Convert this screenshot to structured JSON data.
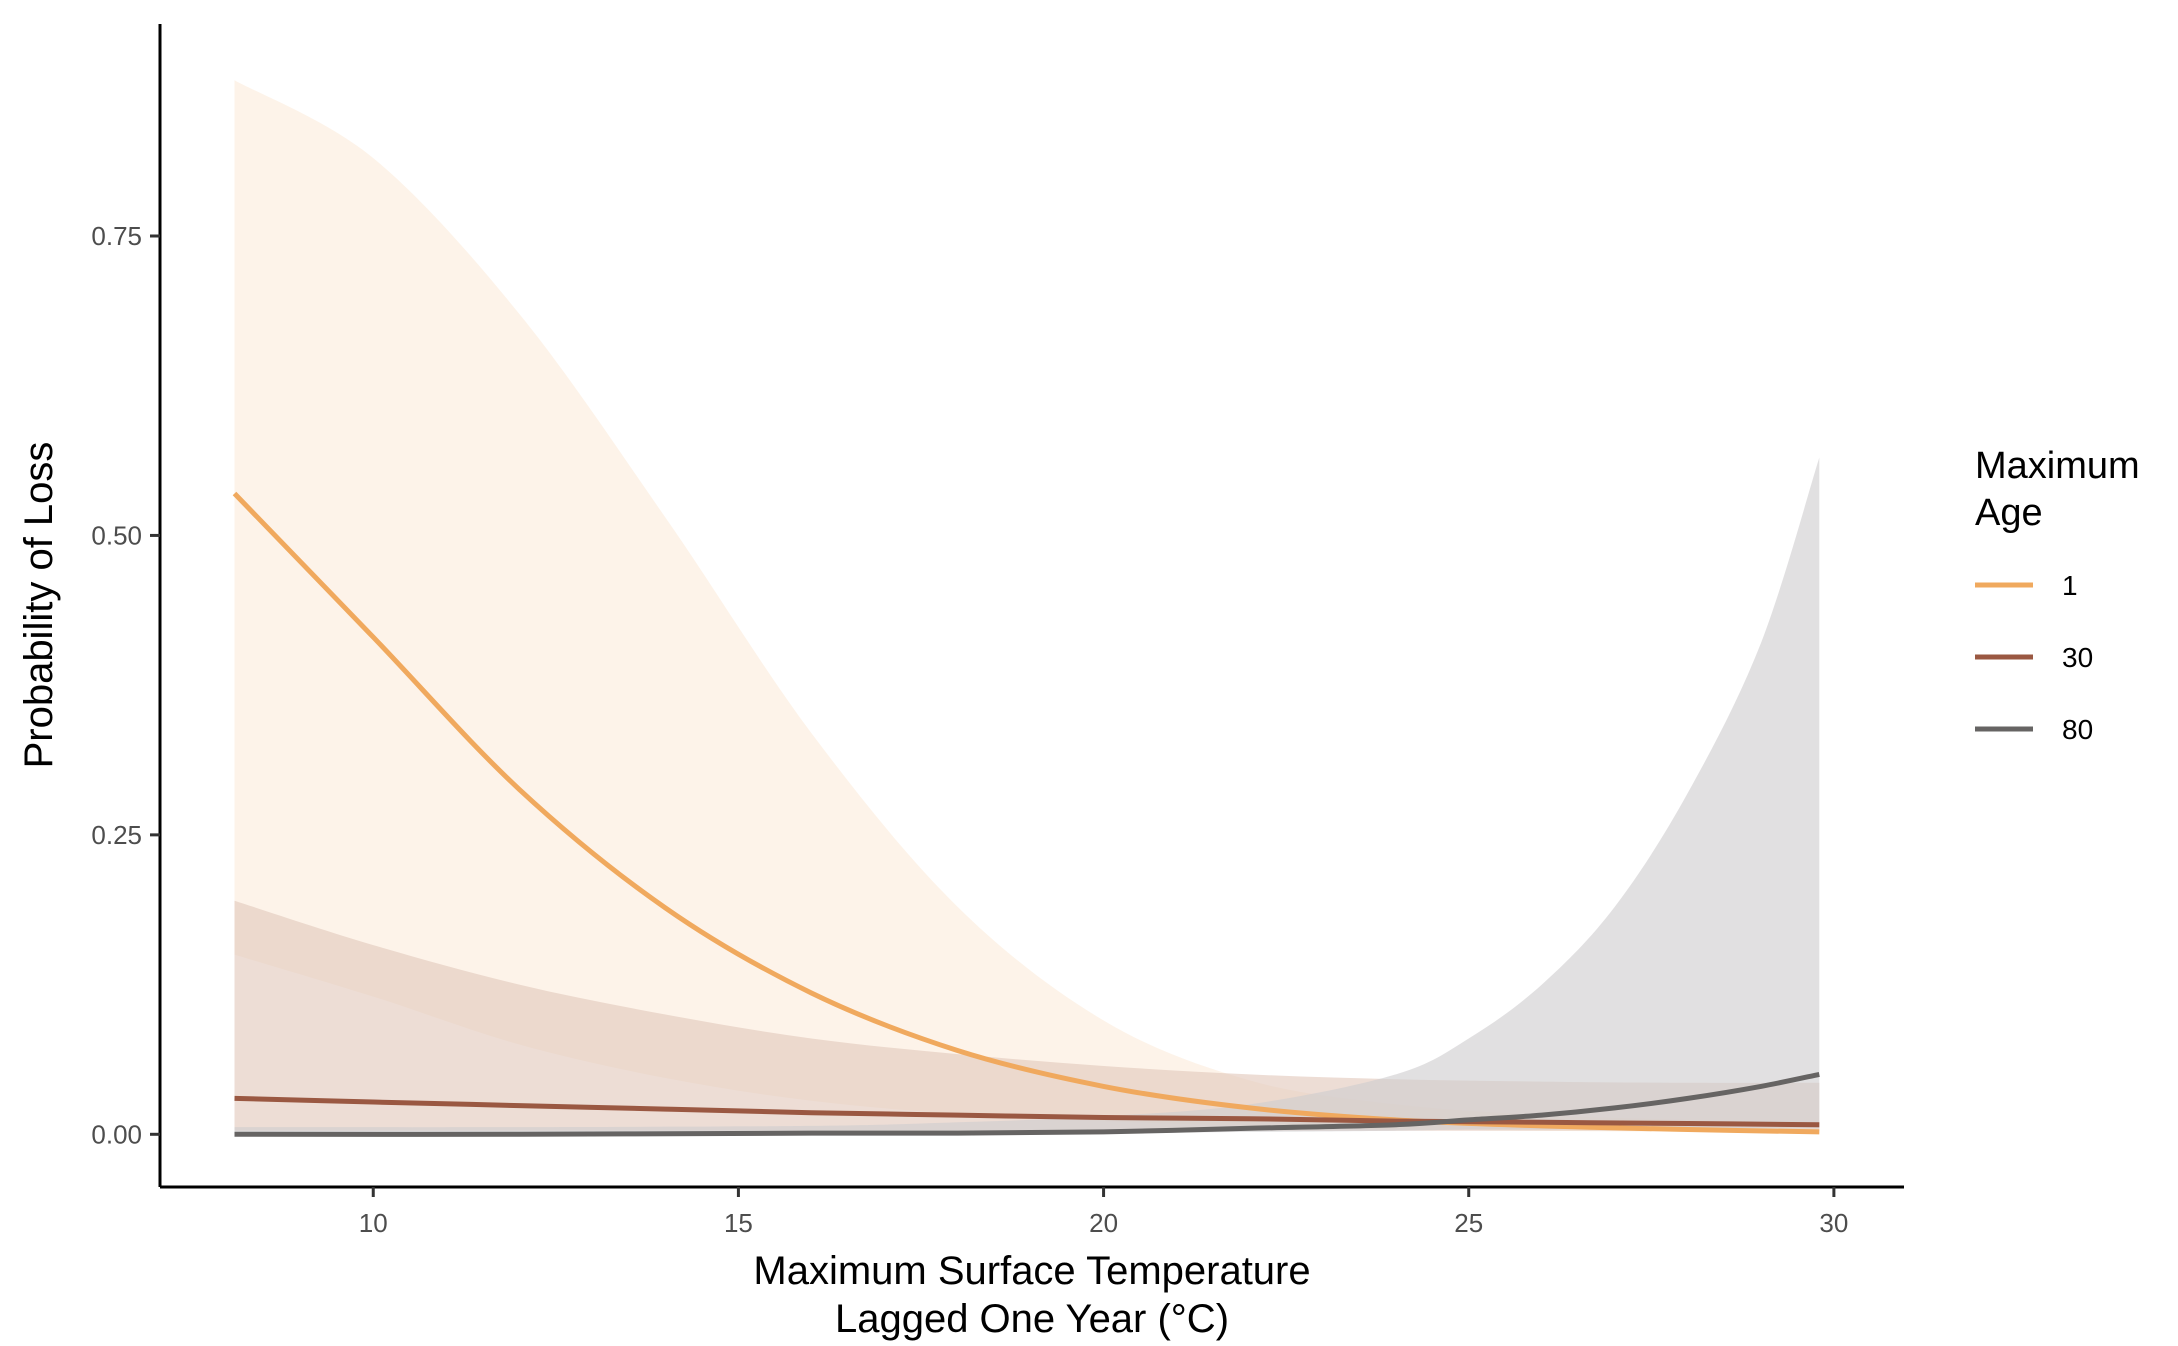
{
  "chart_data": {
    "type": "line",
    "xlabel": [
      "Maximum Surface Temperature",
      "Lagged One Year (°C)"
    ],
    "ylabel": "Probability of Loss",
    "xlim": [
      7.08,
      30.96
    ],
    "ylim": [
      -0.044,
      0.927
    ],
    "x_ticks": [
      10,
      15,
      20,
      25,
      30
    ],
    "x_tick_labels": [
      "10",
      "15",
      "20",
      "25",
      "30"
    ],
    "y_ticks": [
      0,
      0.25,
      0.5,
      0.75
    ],
    "y_tick_labels": [
      "0.00",
      "0.25",
      "0.50",
      "0.75"
    ],
    "grid": false,
    "legend": {
      "title": [
        "Maximum",
        "Age"
      ],
      "position": "right"
    },
    "series": [
      {
        "name": "1",
        "color": "#F0A95E",
        "fill_color": "#FBEBDB",
        "x": [
          8.1,
          10,
          12,
          14,
          16,
          18,
          20,
          22,
          24,
          26,
          28,
          29.8
        ],
        "y": [
          0.535,
          0.415,
          0.288,
          0.189,
          0.118,
          0.07,
          0.04,
          0.022,
          0.012,
          0.007,
          0.004,
          0.002
        ],
        "ci_lower": [
          0.15,
          0.115,
          0.075,
          0.047,
          0.028,
          0.017,
          0.011,
          0.007,
          0.004,
          0.003,
          0.002,
          0.001
        ],
        "ci_upper": [
          0.88,
          0.815,
          0.685,
          0.515,
          0.335,
          0.19,
          0.095,
          0.045,
          0.025,
          0.016,
          0.012,
          0.01
        ]
      },
      {
        "name": "30",
        "color": "#9A5842",
        "fill_color": "#E2C8BB",
        "x": [
          8.1,
          10,
          12,
          14,
          16,
          18,
          20,
          22,
          24,
          26,
          28,
          29.8
        ],
        "y": [
          0.03,
          0.027,
          0.024,
          0.021,
          0.018,
          0.016,
          0.014,
          0.013,
          0.011,
          0.01,
          0.009,
          0.008
        ],
        "ci_lower": [
          0.003,
          0.003,
          0.003,
          0.003,
          0.003,
          0.003,
          0.003,
          0.003,
          0.003,
          0.003,
          0.003,
          0.003
        ],
        "ci_upper": [
          0.195,
          0.158,
          0.125,
          0.1,
          0.08,
          0.067,
          0.057,
          0.05,
          0.046,
          0.044,
          0.043,
          0.043
        ]
      },
      {
        "name": "80",
        "color": "#666463",
        "fill_color": "#CFCDCF",
        "x": [
          8.1,
          12,
          16,
          18,
          20,
          22,
          24,
          25,
          26,
          27,
          28,
          29,
          29.8
        ],
        "y": [
          0.0,
          0.0,
          0.001,
          0.001,
          0.002,
          0.005,
          0.008,
          0.012,
          0.016,
          0.022,
          0.03,
          0.04,
          0.05
        ],
        "ci_lower": [
          0.0,
          0.0,
          0.0,
          0.0,
          0.001,
          0.002,
          0.003,
          0.004,
          0.004,
          0.005,
          0.005,
          0.005,
          0.005
        ],
        "ci_upper": [
          0.006,
          0.006,
          0.007,
          0.01,
          0.015,
          0.025,
          0.05,
          0.08,
          0.125,
          0.19,
          0.285,
          0.41,
          0.565
        ]
      }
    ]
  }
}
